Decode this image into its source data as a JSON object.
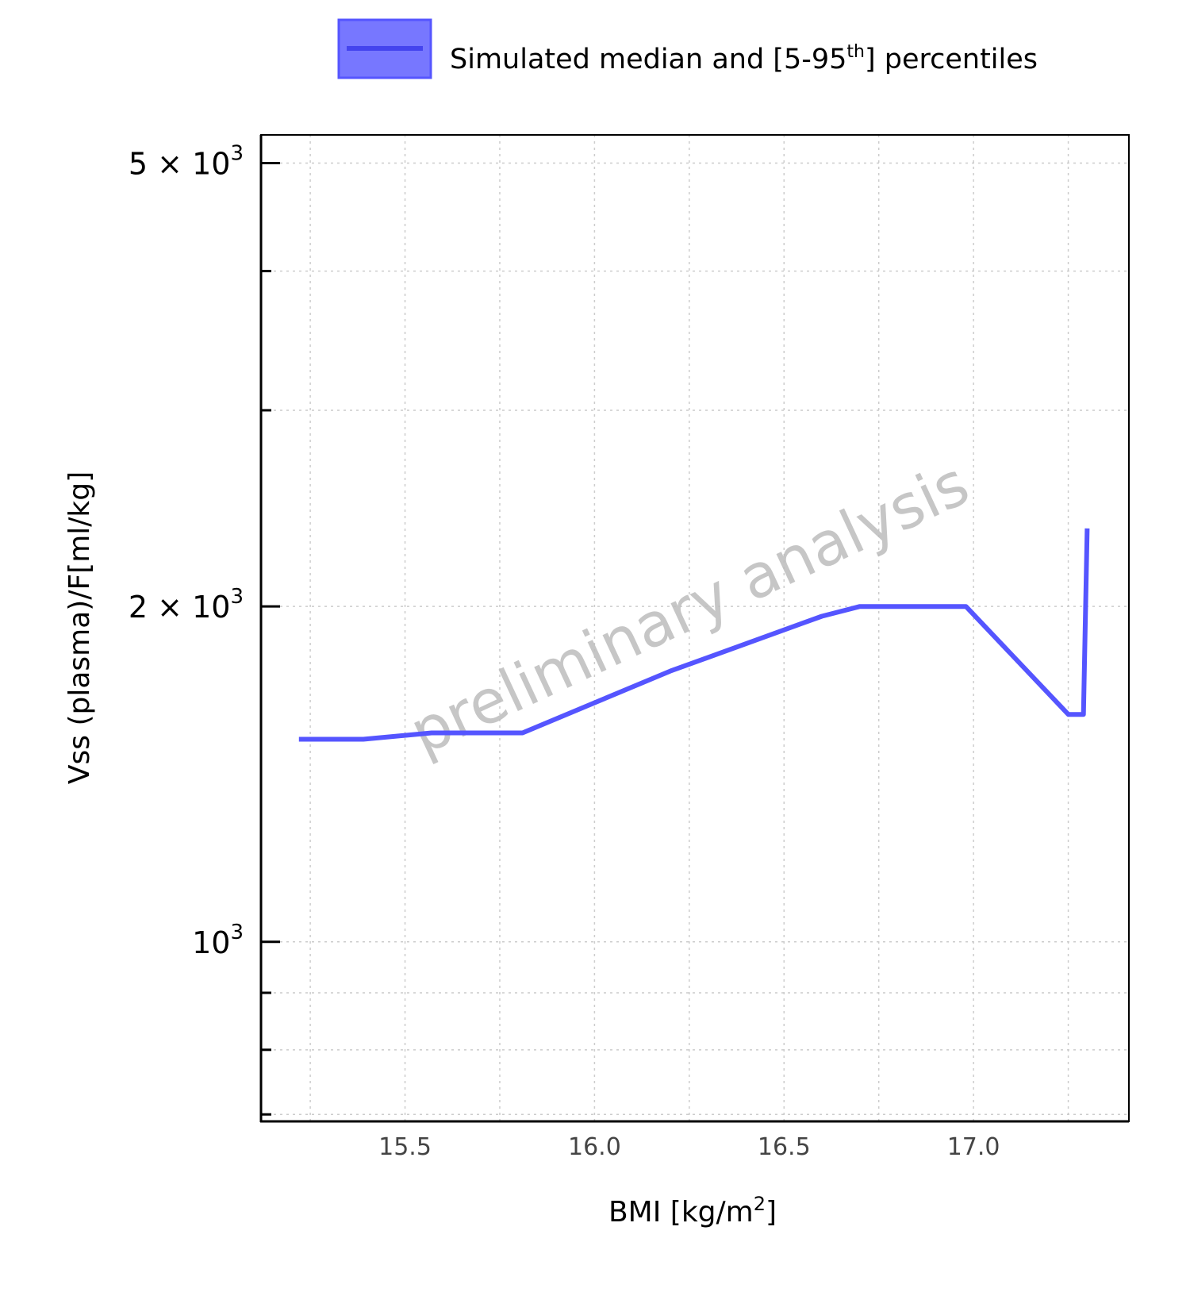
{
  "chart_data": {
    "type": "line",
    "title": "",
    "xlabel_main": "BMI [kg/m",
    "xlabel_sup": "2",
    "xlabel_end": "]",
    "ylabel": "Vss (plasma)/F[ml/kg]",
    "xlim": [
      15.12,
      17.41
    ],
    "ylim": [
      690,
      5300
    ],
    "y_scale": "log",
    "x_ticks": [
      {
        "value": 15.5,
        "label": "15.5"
      },
      {
        "value": 16.0,
        "label": "16.0"
      },
      {
        "value": 16.5,
        "label": "16.5"
      },
      {
        "value": 17.0,
        "label": "17.0"
      }
    ],
    "x_minor_grid": [
      15.25,
      15.75,
      16.25,
      16.75,
      17.25
    ],
    "y_ticks": [
      {
        "value": 5000,
        "mantissa": "5",
        "times": "×",
        "base": "10",
        "exp": "3"
      },
      {
        "value": 2000,
        "mantissa": "2",
        "times": "×",
        "base": "10",
        "exp": "3"
      },
      {
        "value": 1000,
        "mantissa": "",
        "times": "",
        "base": "10",
        "exp": "3"
      }
    ],
    "y_minor_ticks": [
      700,
      800,
      900,
      3000,
      4000
    ],
    "grid": true,
    "legend": {
      "placement": "top-center",
      "label_main": "Simulated median and [5-95",
      "label_sup": "th",
      "label_end": "] percentiles"
    },
    "series": [
      {
        "color": "#5555ff",
        "x": [
          15.22,
          15.39,
          15.57,
          15.81,
          16.2,
          16.6,
          16.7,
          16.98,
          17.25,
          17.29,
          17.3
        ],
        "y": [
          1520,
          1520,
          1540,
          1540,
          1750,
          1960,
          2000,
          2000,
          1600,
          1600,
          2350
        ]
      }
    ],
    "watermark": "preliminary analysis"
  },
  "colors": {
    "series": "#5555ff",
    "legend_fill": "#7777ff",
    "axis": "#000000",
    "grid": "#cccccc",
    "watermark": "#bdbdbd"
  }
}
